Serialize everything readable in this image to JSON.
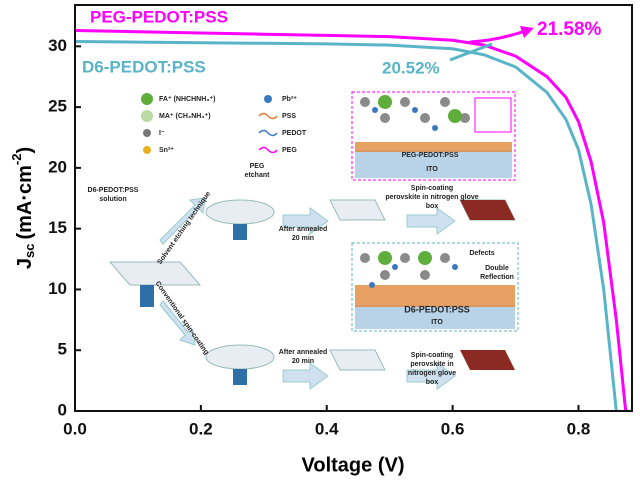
{
  "chart_data": {
    "type": "line",
    "xlabel": "Voltage (V)",
    "ylabel": {
      "main": "J",
      "sub": "sc",
      "unit": "(mA·cm",
      "sup": "-2",
      "close": ")"
    },
    "xlim": [
      0,
      0.885
    ],
    "ylim": [
      0,
      33.4
    ],
    "xticks": [
      {
        "value": 0,
        "label": "0.0"
      },
      0.2,
      0.4,
      0.6,
      0.8
    ],
    "yticks": [
      0,
      5,
      10,
      15,
      20,
      25,
      30
    ],
    "series": [
      {
        "name": "PEG-PEDOT:PSS",
        "color": "#ff00ff",
        "x": [
          0,
          0.1,
          0.2,
          0.3,
          0.4,
          0.5,
          0.6,
          0.65,
          0.7,
          0.75,
          0.78,
          0.8,
          0.82,
          0.84,
          0.86,
          0.875
        ],
        "values": [
          31.3,
          31.2,
          31.1,
          31.0,
          30.9,
          30.8,
          30.5,
          30.1,
          29.2,
          27.5,
          25.8,
          23.8,
          20.5,
          15.5,
          7.5,
          0
        ],
        "efficiency": "21.58%"
      },
      {
        "name": "D6-PEDOT:PSS",
        "color": "#5ab4c8",
        "x": [
          0,
          0.1,
          0.2,
          0.3,
          0.4,
          0.5,
          0.6,
          0.65,
          0.7,
          0.75,
          0.78,
          0.8,
          0.82,
          0.84,
          0.85,
          0.86
        ],
        "values": [
          30.4,
          30.35,
          30.3,
          30.25,
          30.2,
          30.1,
          29.8,
          29.3,
          28.3,
          26.2,
          24.0,
          21.5,
          17.0,
          10.0,
          5.0,
          0
        ],
        "efficiency": "20.52%"
      }
    ],
    "inset": {
      "legend": [
        "FA⁺ (NHCHNH₃⁺)",
        "MA⁺ (CH₃NH₃⁺)",
        "I⁻",
        "Sn²⁺",
        "Pb²⁺",
        "PSS",
        "PEDOT",
        "PEG"
      ],
      "solution": [
        "D6-PEDOT:PSS",
        "solution"
      ],
      "etchant": [
        "PEG",
        "etchant"
      ],
      "route_top": "Solvent etching technique",
      "route_bottom": "Conventional spin-coating",
      "anneal_top": [
        "After annealed",
        "20 min"
      ],
      "anneal_bottom": [
        "After annealed",
        "20 min"
      ],
      "spin_top": [
        "Spin-coating",
        "perovskite in nitrogen glove",
        "box"
      ],
      "spin_bottom": [
        "Spin-coating",
        "perovskite in",
        "nitrogen glove",
        "box"
      ],
      "top_box": {
        "layer": "PEG-PEDOT:PSS",
        "substrate": "ITO"
      },
      "mid_box": {
        "layer": "D6-PEDOT:PSS",
        "substrate": "ITO",
        "defects": "Defects",
        "reflection": [
          "Double",
          "Reflection"
        ]
      }
    }
  }
}
